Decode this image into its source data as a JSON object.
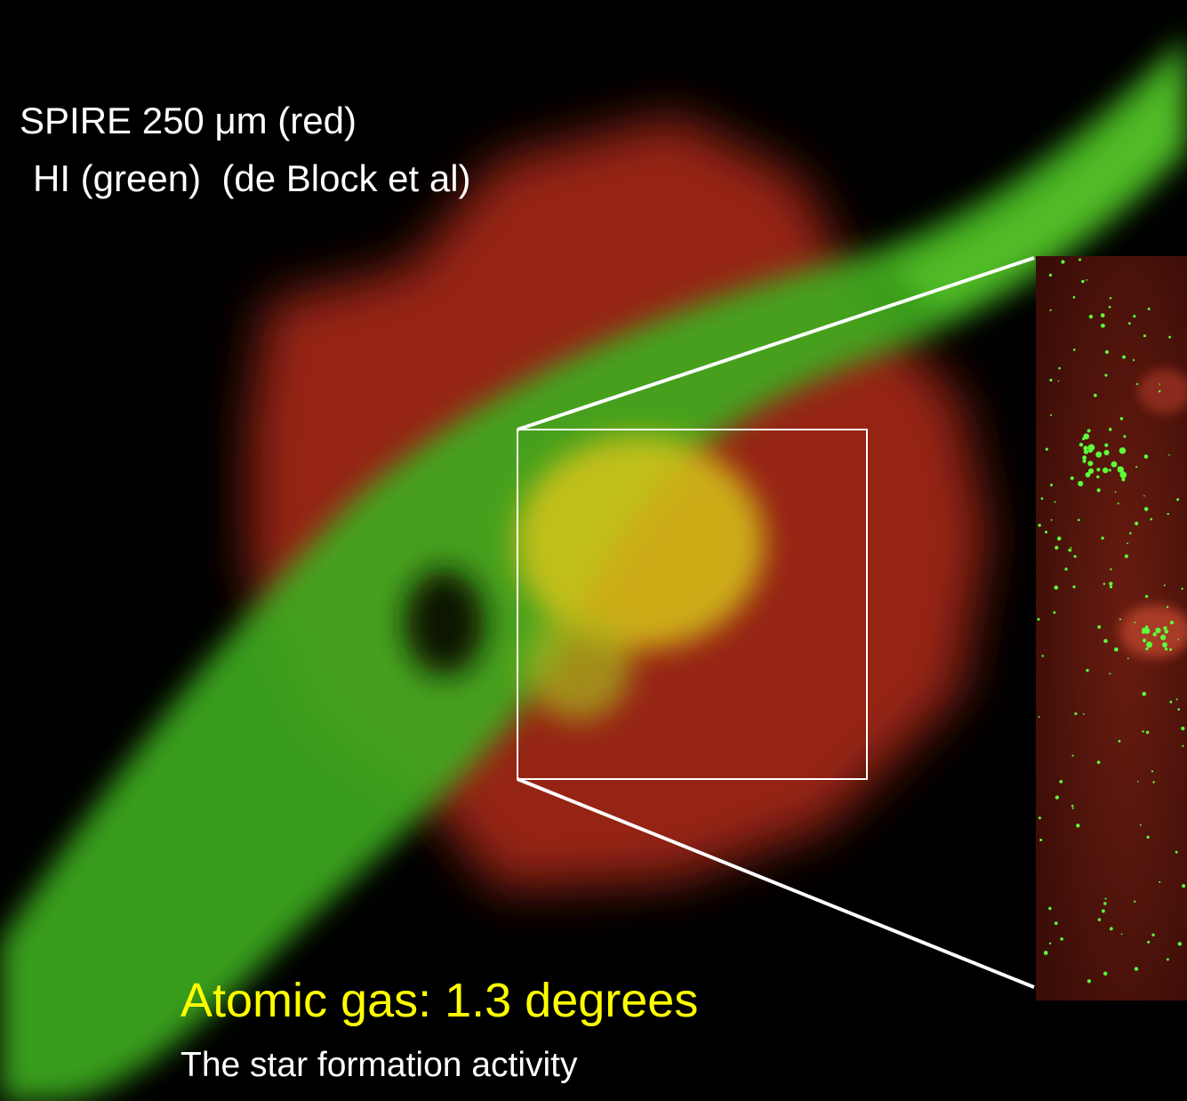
{
  "annotations": {
    "red_label": "SPIRE 250 μm (red)",
    "green_label": "HI (green)  (de Block et al)",
    "heading": "Atomic gas: 1.3 degrees",
    "body": "The star formation activity"
  }
}
